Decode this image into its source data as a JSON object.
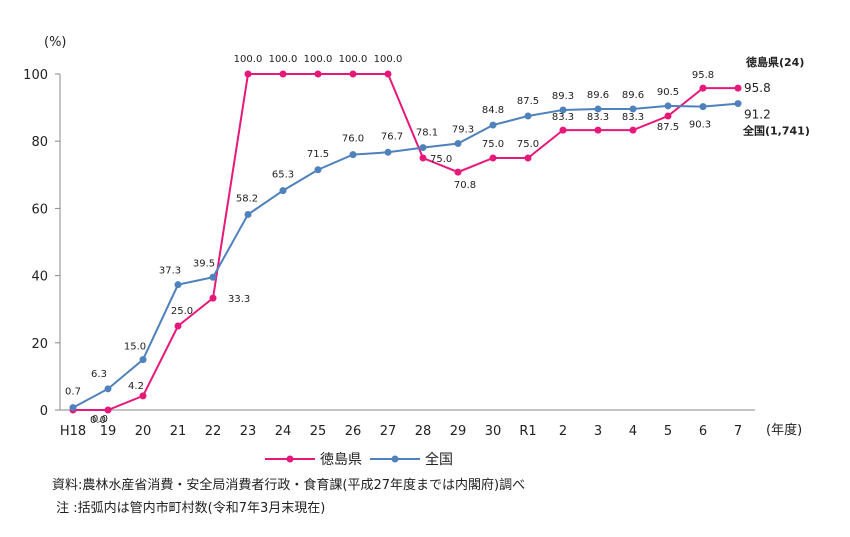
{
  "chart_data": {
    "type": "line",
    "y_unit_label": "(%)",
    "x_unit_label": "(年度)",
    "categories": [
      "H18",
      "19",
      "20",
      "21",
      "22",
      "23",
      "24",
      "25",
      "26",
      "27",
      "28",
      "29",
      "30",
      "R1",
      "2",
      "3",
      "4",
      "5",
      "6",
      "7"
    ],
    "ylim": [
      0,
      100
    ],
    "yticks": [
      0,
      20,
      40,
      60,
      80,
      100
    ],
    "grid": false,
    "legend_position": "bottom-left",
    "series": [
      {
        "name": "徳島県",
        "color": "#e6197a",
        "values": [
          0.0,
          0.0,
          4.2,
          25.0,
          33.3,
          100.0,
          100.0,
          100.0,
          100.0,
          100.0,
          75.0,
          70.8,
          75.0,
          75.0,
          83.3,
          83.3,
          83.3,
          87.5,
          95.8,
          95.8
        ],
        "point_labels": [
          "0.0",
          "0.0",
          "4.2",
          "25.0",
          "33.3",
          "100.0",
          "100.0",
          "100.0",
          "100.0",
          "100.0",
          "75.0",
          "70.8",
          "75.0",
          "75.0",
          "83.3",
          "83.3",
          "83.3",
          "87.5",
          "95.8",
          "95.8"
        ],
        "end_name": "徳島県(24)"
      },
      {
        "name": "全国",
        "color": "#4f81bd",
        "values": [
          0.7,
          6.3,
          15.0,
          37.3,
          39.5,
          58.2,
          65.3,
          71.5,
          76.0,
          76.7,
          78.1,
          79.3,
          84.8,
          87.5,
          89.3,
          89.6,
          89.6,
          90.5,
          90.3,
          91.2
        ],
        "point_labels": [
          "0.7",
          "6.3",
          "15.0",
          "37.3",
          "39.5",
          "58.2",
          "65.3",
          "71.5",
          "76.0",
          "76.7",
          "78.1",
          "79.3",
          "84.8",
          "87.5",
          "89.3",
          "89.6",
          "89.6",
          "90.5",
          "90.3",
          "91.2"
        ],
        "end_name": "全国(1,741)"
      }
    ]
  },
  "notes": [
    "資料:農林水産省消費・安全局消費者行政・食育課(平成27年度までは内閣府)調べ",
    " 注 :括弧内は管内市町村数(令和7年3月末現在)"
  ]
}
